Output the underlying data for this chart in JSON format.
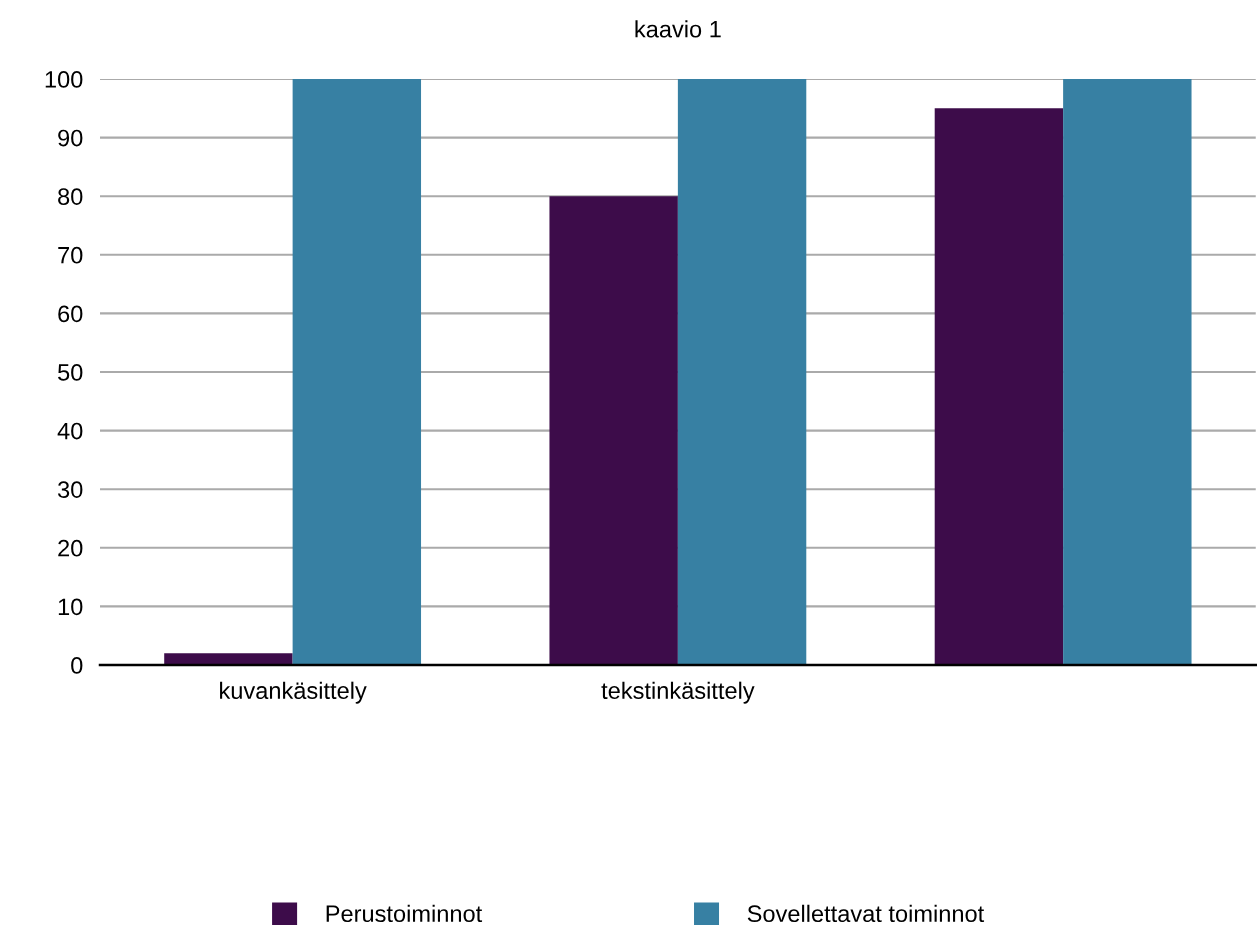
{
  "chart_data": {
    "type": "bar",
    "title": "kaavio 1",
    "categories": [
      "kuvankäsittely",
      "tekstinkäsittely",
      null
    ],
    "series": [
      {
        "name": "Perustoiminnot",
        "color": "#3d0c4a",
        "values": [
          2,
          80,
          95
        ]
      },
      {
        "name": "Sovellettavat toiminnot",
        "color": "#3780a3",
        "values": [
          100,
          100,
          100
        ]
      }
    ],
    "ylim": [
      0,
      100
    ],
    "yticks": [
      0,
      10,
      20,
      30,
      40,
      50,
      60,
      70,
      80,
      90,
      100
    ],
    "grid": "y",
    "legend": "bottom"
  }
}
